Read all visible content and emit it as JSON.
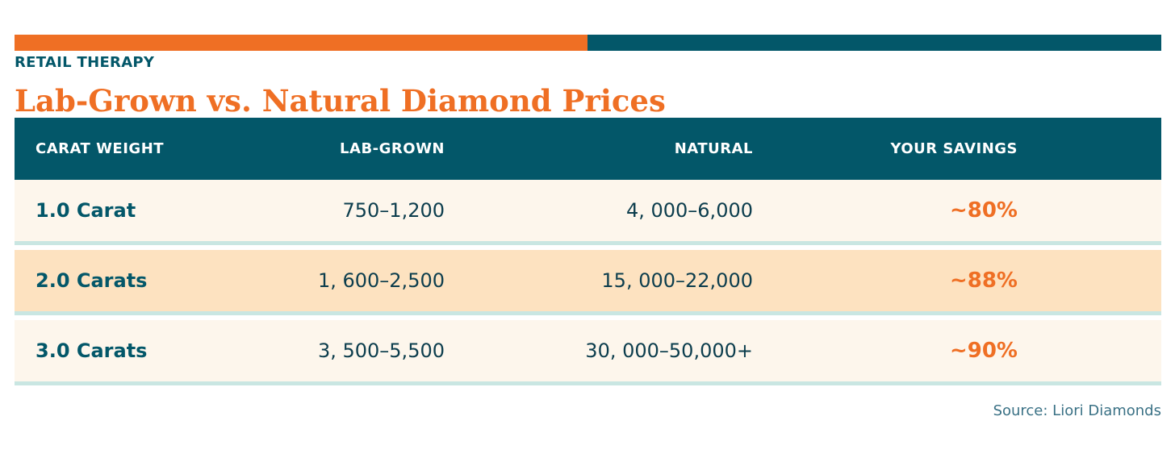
{
  "colors": {
    "accent_orange": "#ef6f24",
    "accent_teal": "#035769",
    "row_light": "#fdf6ec",
    "row_peach": "#fde2c0",
    "row_divider": "#c9e6e2"
  },
  "header": {
    "kicker": "RETAIL THERAPY",
    "title": "Lab-Grown vs. Natural Diamond Prices"
  },
  "table": {
    "columns": [
      "CARAT WEIGHT",
      "LAB-GROWN",
      "NATURAL",
      "YOUR SAVINGS"
    ],
    "rows": [
      {
        "carat": "1.0 Carat",
        "lab": "750–1,200",
        "natural": "4, 000–6,000",
        "savings": "~80%"
      },
      {
        "carat": "2.0 Carats",
        "lab": "1, 600–2,500",
        "natural": "15, 000–22,000",
        "savings": "~88%"
      },
      {
        "carat": "3.0 Carats",
        "lab": "3, 500–5,500",
        "natural": "30, 000–50,000+",
        "savings": "~90%"
      }
    ]
  },
  "footer": {
    "source": "Source: Liori Diamonds"
  }
}
